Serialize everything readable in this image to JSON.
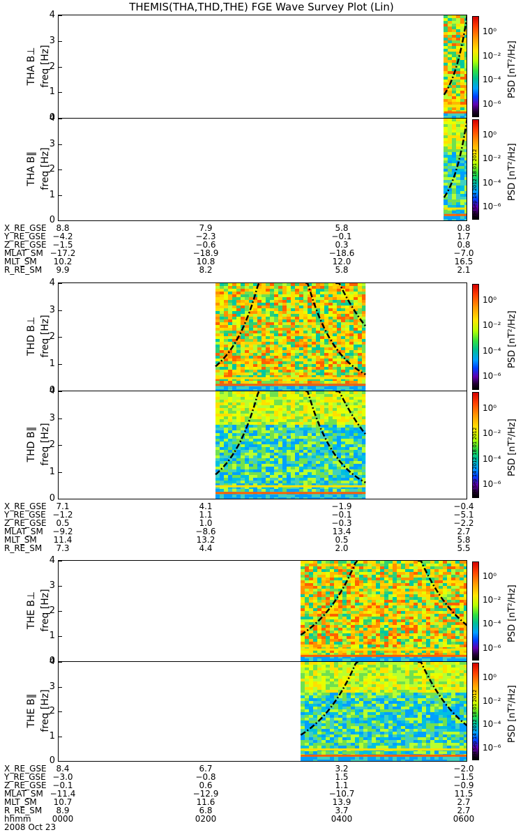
{
  "title": "THEMIS(THA,THD,THE) FGE Wave Survey Plot (Lin)",
  "colorbar": {
    "label": "PSD [nT²/Hz]",
    "ticks": [
      "10⁰",
      "10⁻²",
      "10⁻⁴",
      "10⁻⁶"
    ],
    "stamp": "FH Sep 14 2012 18:01 2012"
  },
  "chart_data": [
    {
      "type": "heatmap",
      "probe": "THA",
      "panels": [
        {
          "ylabel": "THA B⊥",
          "ylabel2": "freq [Hz]",
          "yticks": [
            "4",
            "3",
            "2",
            "1",
            "0"
          ],
          "ylim": [
            0,
            4
          ]
        },
        {
          "ylabel": "THA B∥",
          "ylabel2": "freq [Hz]",
          "yticks": [
            "4",
            "3",
            "2",
            "1",
            "0"
          ],
          "ylim": [
            0,
            4
          ]
        }
      ],
      "data_start_hour": 5.65,
      "data_end_hour": 6.0,
      "orbit": {
        "labels": [
          "X_RE_GSE",
          "Y_RE_GSE",
          "Z_RE_GSE",
          "MLAT_SM",
          "MLT_SM",
          "R_RE_SM"
        ],
        "columns": [
          [
            "8.8",
            "−4.2",
            "−1.5",
            "−17.2",
            "10.2",
            "9.9"
          ],
          [
            "7.9",
            "−2.3",
            "−0.6",
            "−18.9",
            "10.8",
            "8.2"
          ],
          [
            "5.8",
            "−0.1",
            "0.3",
            "−18.6",
            "12.0",
            "5.8"
          ],
          [
            "0.8",
            "1.7",
            "0.8",
            "−7.0",
            "16.5",
            "2.1"
          ]
        ]
      }
    },
    {
      "type": "heatmap",
      "probe": "THD",
      "panels": [
        {
          "ylabel": "THD B⊥",
          "ylabel2": "freq [Hz]",
          "yticks": [
            "4",
            "3",
            "2",
            "1",
            "0"
          ],
          "ylim": [
            0,
            4
          ]
        },
        {
          "ylabel": "THD B∥",
          "ylabel2": "freq [Hz]",
          "yticks": [
            "4",
            "3",
            "2",
            "1",
            "0"
          ],
          "ylim": [
            0,
            4
          ]
        }
      ],
      "data_start_hour": 2.3,
      "data_end_hour": 4.5,
      "orbit": {
        "labels": [
          "X_RE_GSE",
          "Y_RE_GSE",
          "Z_RE_GSE",
          "MLAT_SM",
          "MLT_SM",
          "R_RE_SM"
        ],
        "columns": [
          [
            "7.1",
            "−1.2",
            "0.5",
            "−9.2",
            "11.4",
            "7.3"
          ],
          [
            "4.1",
            "1.1",
            "1.0",
            "−8.6",
            "13.2",
            "4.4"
          ],
          [
            "−1.9",
            "−0.1",
            "−0.3",
            "13.4",
            "0.5",
            "2.0"
          ],
          [
            "−0.4",
            "−5.1",
            "−2.2",
            "2.7",
            "5.8",
            "5.5"
          ]
        ]
      }
    },
    {
      "type": "heatmap",
      "probe": "THE",
      "panels": [
        {
          "ylabel": "THE B⊥",
          "ylabel2": "freq [Hz]",
          "yticks": [
            "4",
            "3",
            "2",
            "1",
            "0"
          ],
          "ylim": [
            0,
            4
          ]
        },
        {
          "ylabel": "THE B∥",
          "ylabel2": "freq [Hz]",
          "yticks": [
            "4",
            "3",
            "2",
            "1",
            "0"
          ],
          "ylim": [
            0,
            4
          ]
        }
      ],
      "data_start_hour": 3.55,
      "data_end_hour": 6.0,
      "orbit": {
        "labels": [
          "X_RE_GSE",
          "Y_RE_GSE",
          "Z_RE_GSE",
          "MLAT_SM",
          "MLT_SM",
          "R_RE_SM"
        ],
        "columns": [
          [
            "8.4",
            "−3.0",
            "−0.1",
            "−11.4",
            "10.7",
            "8.9"
          ],
          [
            "6.7",
            "−0.8",
            "0.6",
            "−12.9",
            "11.6",
            "6.8"
          ],
          [
            "3.2",
            "1.5",
            "1.1",
            "−10.7",
            "13.9",
            "3.7"
          ],
          [
            "−2.0",
            "−1.5",
            "−0.9",
            "11.5",
            "2.7",
            "2.7"
          ]
        ]
      }
    }
  ],
  "time_axis": {
    "label": "hhmm",
    "ticks": [
      "0000",
      "0200",
      "0400",
      "0600"
    ],
    "date": "2008 Oct 23"
  }
}
